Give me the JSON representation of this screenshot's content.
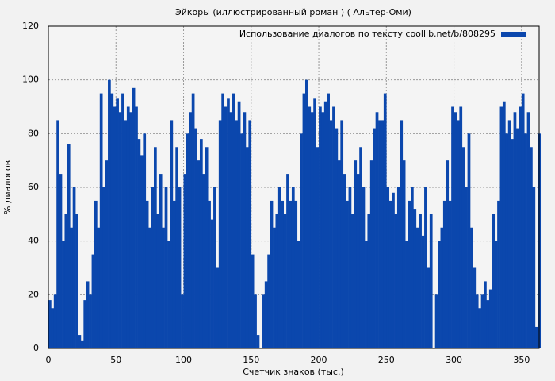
{
  "chart_data": {
    "type": "bar",
    "title": "Эйкоры (иллюстрированный роман ) ( Альтер-Оми)",
    "x_label": "Счетчик знаков (тыс.)",
    "y_label": "% диалогов",
    "legend_position": "upper right",
    "grid": true,
    "x": [
      0,
      2,
      4,
      6,
      8,
      10,
      12,
      14,
      16,
      18,
      20,
      22,
      24,
      26,
      28,
      30,
      32,
      34,
      36,
      38,
      40,
      42,
      44,
      46,
      48,
      50,
      52,
      54,
      56,
      58,
      60,
      62,
      64,
      66,
      68,
      70,
      72,
      74,
      76,
      78,
      80,
      82,
      84,
      86,
      88,
      90,
      92,
      94,
      96,
      98,
      100,
      102,
      104,
      106,
      108,
      110,
      112,
      114,
      116,
      118,
      120,
      122,
      124,
      126,
      128,
      130,
      132,
      134,
      136,
      138,
      140,
      142,
      144,
      146,
      148,
      150,
      152,
      154,
      156,
      158,
      160,
      162,
      164,
      166,
      168,
      170,
      172,
      174,
      176,
      178,
      180,
      182,
      184,
      186,
      188,
      190,
      192,
      194,
      196,
      198,
      200,
      202,
      204,
      206,
      208,
      210,
      212,
      214,
      216,
      218,
      220,
      222,
      224,
      226,
      228,
      230,
      232,
      234,
      236,
      238,
      240,
      242,
      244,
      246,
      248,
      250,
      252,
      254,
      256,
      258,
      260,
      262,
      264,
      266,
      268,
      270,
      272,
      274,
      276,
      278,
      280,
      282,
      284,
      286,
      288,
      290,
      292,
      294,
      296,
      298,
      300,
      302,
      304,
      306,
      308,
      310,
      312,
      314,
      316,
      318,
      320,
      322,
      324,
      326,
      328,
      330,
      332,
      334,
      336,
      338,
      340,
      342,
      344,
      346,
      348,
      350,
      352,
      354,
      356,
      358,
      360,
      362
    ],
    "series": [
      {
        "name": "Использование диалогов по тексту coollib.net/b/808295",
        "color": "#0b47ad",
        "values": [
          18,
          15,
          20,
          85,
          65,
          40,
          50,
          76,
          45,
          60,
          50,
          5,
          3,
          18,
          25,
          20,
          35,
          55,
          45,
          95,
          60,
          70,
          100,
          95,
          90,
          93,
          88,
          95,
          85,
          90,
          88,
          97,
          90,
          78,
          72,
          80,
          55,
          45,
          60,
          75,
          50,
          65,
          45,
          60,
          40,
          85,
          55,
          75,
          60,
          20,
          65,
          80,
          88,
          95,
          82,
          70,
          78,
          65,
          75,
          55,
          48,
          60,
          30,
          85,
          95,
          90,
          93,
          88,
          95,
          85,
          92,
          80,
          88,
          75,
          85,
          35,
          20,
          5,
          0,
          20,
          25,
          35,
          55,
          45,
          50,
          60,
          55,
          50,
          65,
          55,
          60,
          55,
          40,
          80,
          95,
          100,
          90,
          88,
          93,
          75,
          90,
          88,
          92,
          95,
          85,
          90,
          82,
          70,
          85,
          65,
          55,
          60,
          50,
          70,
          65,
          75,
          60,
          40,
          50,
          70,
          82,
          88,
          85,
          85,
          95,
          60,
          55,
          58,
          50,
          60,
          85,
          70,
          40,
          55,
          60,
          52,
          45,
          50,
          42,
          60,
          30,
          50,
          0,
          20,
          40,
          45,
          55,
          70,
          55,
          90,
          88,
          85,
          90,
          75,
          60,
          80,
          45,
          30,
          20,
          15,
          20,
          25,
          18,
          22,
          50,
          40,
          55,
          90,
          92,
          80,
          85,
          78,
          88,
          82,
          90,
          95,
          80,
          88,
          75,
          60,
          8,
          80
        ]
      }
    ],
    "xlim": [
      0,
      363
    ],
    "ylim": [
      0,
      120
    ],
    "xticks": [
      0,
      50,
      100,
      150,
      200,
      250,
      300,
      350
    ],
    "yticks": [
      0,
      20,
      40,
      60,
      80,
      100,
      120
    ]
  }
}
